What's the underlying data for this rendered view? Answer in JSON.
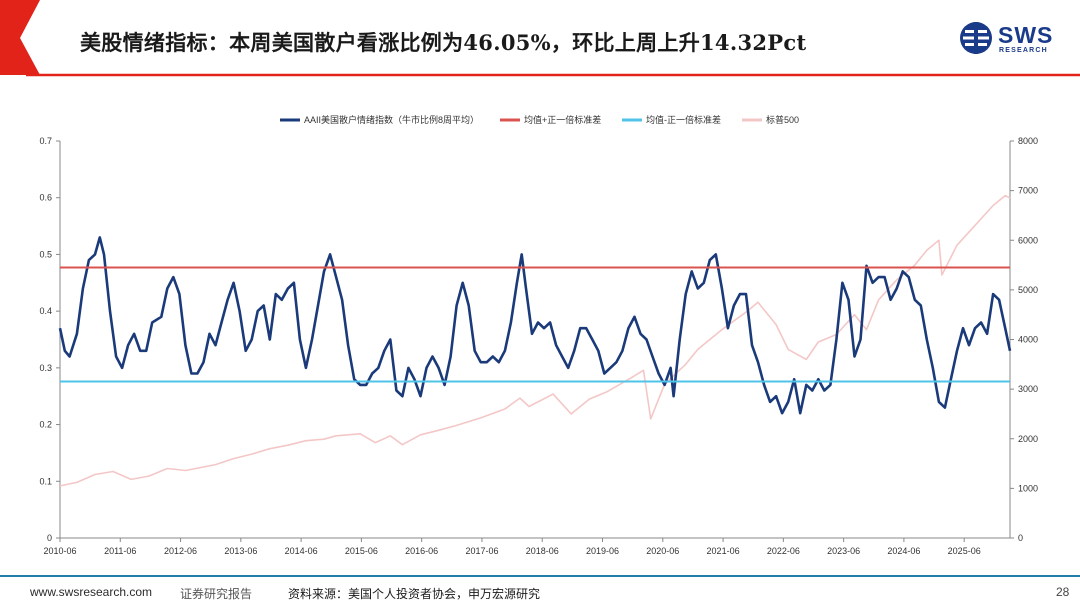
{
  "header": {
    "title": "美股情绪指标：本周美国散户看涨比例为46.05%，环比上周上升14.32Pct",
    "accent_color": "#e2231a"
  },
  "logo": {
    "text": "SWS",
    "sub": "RESEARCH",
    "color": "#1a3a8a",
    "icon": "sws-logo-icon"
  },
  "footer": {
    "url": "www.swsresearch.com",
    "report_type": "证券研究报告",
    "source": "资料来源：美国个人投资者协会，申万宏源研究",
    "page": "28"
  },
  "chart_data": {
    "type": "line",
    "title": "",
    "xlabel": "",
    "ylabel": "",
    "x_tick_labels": [
      "2010-06",
      "2011-06",
      "2012-06",
      "2013-06",
      "2014-06",
      "2015-06",
      "2016-06",
      "2017-06",
      "2018-06",
      "2019-06",
      "2020-06",
      "2021-06",
      "2022-06",
      "2023-06",
      "2024-06",
      "2025-06"
    ],
    "left_axis": {
      "min": 0,
      "max": 0.7,
      "ticks": [
        "0",
        "0.1",
        "0.2",
        "0.3",
        "0.4",
        "0.5",
        "0.6",
        "0.7"
      ]
    },
    "right_axis": {
      "min": 0,
      "max": 8000,
      "ticks": [
        "0",
        "1000",
        "2000",
        "3000",
        "4000",
        "5000",
        "6000",
        "7000",
        "8000"
      ]
    },
    "grid": false,
    "legend_position": "top",
    "series": [
      {
        "name": "AAII美国散户情绪指数（牛市比例8周平均）",
        "axis": "left",
        "color": "#1a3a7a",
        "points": [
          [
            2010.42,
            0.37
          ],
          [
            2010.5,
            0.33
          ],
          [
            2010.58,
            0.32
          ],
          [
            2010.7,
            0.36
          ],
          [
            2010.8,
            0.44
          ],
          [
            2010.9,
            0.49
          ],
          [
            2011.0,
            0.5
          ],
          [
            2011.08,
            0.53
          ],
          [
            2011.15,
            0.5
          ],
          [
            2011.25,
            0.4
          ],
          [
            2011.35,
            0.32
          ],
          [
            2011.45,
            0.3
          ],
          [
            2011.55,
            0.34
          ],
          [
            2011.65,
            0.36
          ],
          [
            2011.75,
            0.33
          ],
          [
            2011.85,
            0.33
          ],
          [
            2011.95,
            0.38
          ],
          [
            2012.1,
            0.39
          ],
          [
            2012.2,
            0.44
          ],
          [
            2012.3,
            0.46
          ],
          [
            2012.4,
            0.43
          ],
          [
            2012.5,
            0.34
          ],
          [
            2012.6,
            0.29
          ],
          [
            2012.7,
            0.29
          ],
          [
            2012.8,
            0.31
          ],
          [
            2012.9,
            0.36
          ],
          [
            2013.0,
            0.34
          ],
          [
            2013.1,
            0.38
          ],
          [
            2013.2,
            0.42
          ],
          [
            2013.3,
            0.45
          ],
          [
            2013.4,
            0.4
          ],
          [
            2013.5,
            0.33
          ],
          [
            2013.6,
            0.35
          ],
          [
            2013.7,
            0.4
          ],
          [
            2013.8,
            0.41
          ],
          [
            2013.9,
            0.35
          ],
          [
            2014.0,
            0.43
          ],
          [
            2014.1,
            0.42
          ],
          [
            2014.2,
            0.44
          ],
          [
            2014.3,
            0.45
          ],
          [
            2014.4,
            0.35
          ],
          [
            2014.5,
            0.3
          ],
          [
            2014.6,
            0.35
          ],
          [
            2014.7,
            0.41
          ],
          [
            2014.8,
            0.47
          ],
          [
            2014.9,
            0.5
          ],
          [
            2015.0,
            0.46
          ],
          [
            2015.1,
            0.42
          ],
          [
            2015.2,
            0.34
          ],
          [
            2015.3,
            0.28
          ],
          [
            2015.4,
            0.27
          ],
          [
            2015.5,
            0.27
          ],
          [
            2015.6,
            0.29
          ],
          [
            2015.7,
            0.3
          ],
          [
            2015.8,
            0.33
          ],
          [
            2015.9,
            0.35
          ],
          [
            2016.0,
            0.26
          ],
          [
            2016.1,
            0.25
          ],
          [
            2016.2,
            0.3
          ],
          [
            2016.3,
            0.28
          ],
          [
            2016.4,
            0.25
          ],
          [
            2016.5,
            0.3
          ],
          [
            2016.6,
            0.32
          ],
          [
            2016.7,
            0.3
          ],
          [
            2016.8,
            0.27
          ],
          [
            2016.9,
            0.32
          ],
          [
            2017.0,
            0.41
          ],
          [
            2017.1,
            0.45
          ],
          [
            2017.2,
            0.41
          ],
          [
            2017.3,
            0.33
          ],
          [
            2017.4,
            0.31
          ],
          [
            2017.5,
            0.31
          ],
          [
            2017.6,
            0.32
          ],
          [
            2017.7,
            0.31
          ],
          [
            2017.8,
            0.33
          ],
          [
            2017.9,
            0.38
          ],
          [
            2018.0,
            0.45
          ],
          [
            2018.08,
            0.5
          ],
          [
            2018.15,
            0.44
          ],
          [
            2018.25,
            0.36
          ],
          [
            2018.35,
            0.38
          ],
          [
            2018.45,
            0.37
          ],
          [
            2018.55,
            0.38
          ],
          [
            2018.65,
            0.34
          ],
          [
            2018.75,
            0.32
          ],
          [
            2018.85,
            0.3
          ],
          [
            2018.95,
            0.33
          ],
          [
            2019.05,
            0.37
          ],
          [
            2019.15,
            0.37
          ],
          [
            2019.25,
            0.35
          ],
          [
            2019.35,
            0.33
          ],
          [
            2019.45,
            0.29
          ],
          [
            2019.55,
            0.3
          ],
          [
            2019.65,
            0.31
          ],
          [
            2019.75,
            0.33
          ],
          [
            2019.85,
            0.37
          ],
          [
            2019.95,
            0.39
          ],
          [
            2020.05,
            0.36
          ],
          [
            2020.15,
            0.35
          ],
          [
            2020.25,
            0.32
          ],
          [
            2020.35,
            0.29
          ],
          [
            2020.45,
            0.27
          ],
          [
            2020.55,
            0.3
          ],
          [
            2020.6,
            0.25
          ],
          [
            2020.7,
            0.35
          ],
          [
            2020.8,
            0.43
          ],
          [
            2020.9,
            0.47
          ],
          [
            2021.0,
            0.44
          ],
          [
            2021.1,
            0.45
          ],
          [
            2021.2,
            0.49
          ],
          [
            2021.3,
            0.5
          ],
          [
            2021.4,
            0.44
          ],
          [
            2021.5,
            0.37
          ],
          [
            2021.6,
            0.41
          ],
          [
            2021.7,
            0.43
          ],
          [
            2021.8,
            0.43
          ],
          [
            2021.9,
            0.34
          ],
          [
            2022.0,
            0.31
          ],
          [
            2022.1,
            0.27
          ],
          [
            2022.2,
            0.24
          ],
          [
            2022.3,
            0.25
          ],
          [
            2022.4,
            0.22
          ],
          [
            2022.5,
            0.24
          ],
          [
            2022.6,
            0.28
          ],
          [
            2022.7,
            0.22
          ],
          [
            2022.8,
            0.27
          ],
          [
            2022.9,
            0.26
          ],
          [
            2023.0,
            0.28
          ],
          [
            2023.1,
            0.26
          ],
          [
            2023.2,
            0.27
          ],
          [
            2023.3,
            0.35
          ],
          [
            2023.4,
            0.45
          ],
          [
            2023.5,
            0.42
          ],
          [
            2023.6,
            0.32
          ],
          [
            2023.7,
            0.35
          ],
          [
            2023.8,
            0.48
          ],
          [
            2023.9,
            0.45
          ],
          [
            2024.0,
            0.46
          ],
          [
            2024.1,
            0.46
          ],
          [
            2024.2,
            0.42
          ],
          [
            2024.3,
            0.44
          ],
          [
            2024.4,
            0.47
          ],
          [
            2024.5,
            0.46
          ],
          [
            2024.6,
            0.42
          ],
          [
            2024.7,
            0.41
          ],
          [
            2024.8,
            0.35
          ],
          [
            2024.9,
            0.3
          ],
          [
            2025.0,
            0.24
          ],
          [
            2025.1,
            0.23
          ],
          [
            2025.2,
            0.28
          ],
          [
            2025.3,
            0.33
          ],
          [
            2025.4,
            0.37
          ],
          [
            2025.5,
            0.34
          ],
          [
            2025.6,
            0.37
          ],
          [
            2025.7,
            0.38
          ],
          [
            2025.8,
            0.36
          ],
          [
            2025.9,
            0.43
          ],
          [
            2026.0,
            0.42
          ],
          [
            2026.1,
            0.37
          ],
          [
            2026.18,
            0.33
          ]
        ]
      },
      {
        "name": "均值+正一倍标准差",
        "axis": "left",
        "color": "#d9534f",
        "constant": 0.477
      },
      {
        "name": "均值-正一倍标准差",
        "axis": "left",
        "color": "#4fc3e8",
        "constant": 0.276
      },
      {
        "name": "标普500",
        "axis": "right",
        "color": "#f4c7c7",
        "points": [
          [
            2010.42,
            1050
          ],
          [
            2010.7,
            1120
          ],
          [
            2011.0,
            1280
          ],
          [
            2011.3,
            1340
          ],
          [
            2011.6,
            1180
          ],
          [
            2011.9,
            1250
          ],
          [
            2012.2,
            1400
          ],
          [
            2012.5,
            1360
          ],
          [
            2012.8,
            1430
          ],
          [
            2013.0,
            1480
          ],
          [
            2013.3,
            1600
          ],
          [
            2013.6,
            1690
          ],
          [
            2013.9,
            1800
          ],
          [
            2014.2,
            1870
          ],
          [
            2014.5,
            1960
          ],
          [
            2014.8,
            1990
          ],
          [
            2015.0,
            2060
          ],
          [
            2015.4,
            2100
          ],
          [
            2015.65,
            1920
          ],
          [
            2015.9,
            2060
          ],
          [
            2016.1,
            1880
          ],
          [
            2016.4,
            2080
          ],
          [
            2016.7,
            2170
          ],
          [
            2017.0,
            2270
          ],
          [
            2017.4,
            2420
          ],
          [
            2017.8,
            2600
          ],
          [
            2018.05,
            2820
          ],
          [
            2018.2,
            2650
          ],
          [
            2018.6,
            2900
          ],
          [
            2018.9,
            2500
          ],
          [
            2019.2,
            2800
          ],
          [
            2019.5,
            2950
          ],
          [
            2019.9,
            3230
          ],
          [
            2020.1,
            3380
          ],
          [
            2020.22,
            2400
          ],
          [
            2020.45,
            3100
          ],
          [
            2020.8,
            3500
          ],
          [
            2021.0,
            3800
          ],
          [
            2021.4,
            4200
          ],
          [
            2021.8,
            4550
          ],
          [
            2022.0,
            4750
          ],
          [
            2022.3,
            4300
          ],
          [
            2022.5,
            3800
          ],
          [
            2022.8,
            3600
          ],
          [
            2023.0,
            3950
          ],
          [
            2023.3,
            4100
          ],
          [
            2023.6,
            4500
          ],
          [
            2023.8,
            4200
          ],
          [
            2024.0,
            4800
          ],
          [
            2024.3,
            5200
          ],
          [
            2024.6,
            5500
          ],
          [
            2024.8,
            5800
          ],
          [
            2025.0,
            6000
          ],
          [
            2025.05,
            5300
          ],
          [
            2025.3,
            5900
          ],
          [
            2025.6,
            6300
          ],
          [
            2025.9,
            6700
          ],
          [
            2026.1,
            6900
          ],
          [
            2026.18,
            6850
          ]
        ]
      }
    ]
  }
}
